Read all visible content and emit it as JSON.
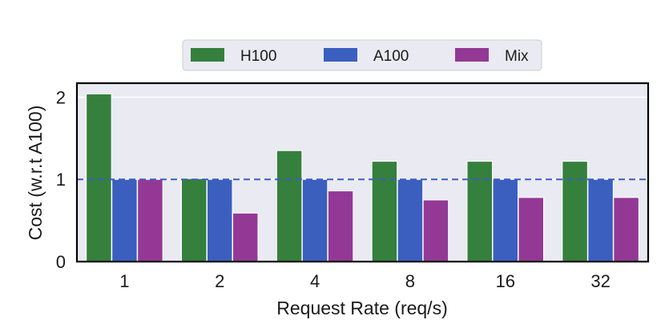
{
  "chart_data": {
    "type": "bar",
    "title": "",
    "xlabel": "Request Rate (req/s)",
    "ylabel": "Cost (w.r.t A100)",
    "categories": [
      "1",
      "2",
      "4",
      "8",
      "16",
      "32"
    ],
    "series": [
      {
        "name": "H100",
        "color": "#35803d",
        "values": [
          2.04,
          1.01,
          1.35,
          1.22,
          1.22,
          1.22
        ]
      },
      {
        "name": "A100",
        "color": "#3a5fbf",
        "values": [
          1.0,
          1.0,
          1.0,
          1.0,
          1.0,
          1.0
        ]
      },
      {
        "name": "Mix",
        "color": "#933995",
        "values": [
          1.0,
          0.59,
          0.86,
          0.75,
          0.78,
          0.78
        ]
      }
    ],
    "ylim": [
      0,
      2.17
    ],
    "yticks": [
      "0",
      "1",
      "2"
    ],
    "reference_line": {
      "value": 1,
      "style": "dashed",
      "color": "#3a5fbf"
    },
    "grid": true,
    "background": "#eaeaf2",
    "legend_position": "top-center"
  }
}
